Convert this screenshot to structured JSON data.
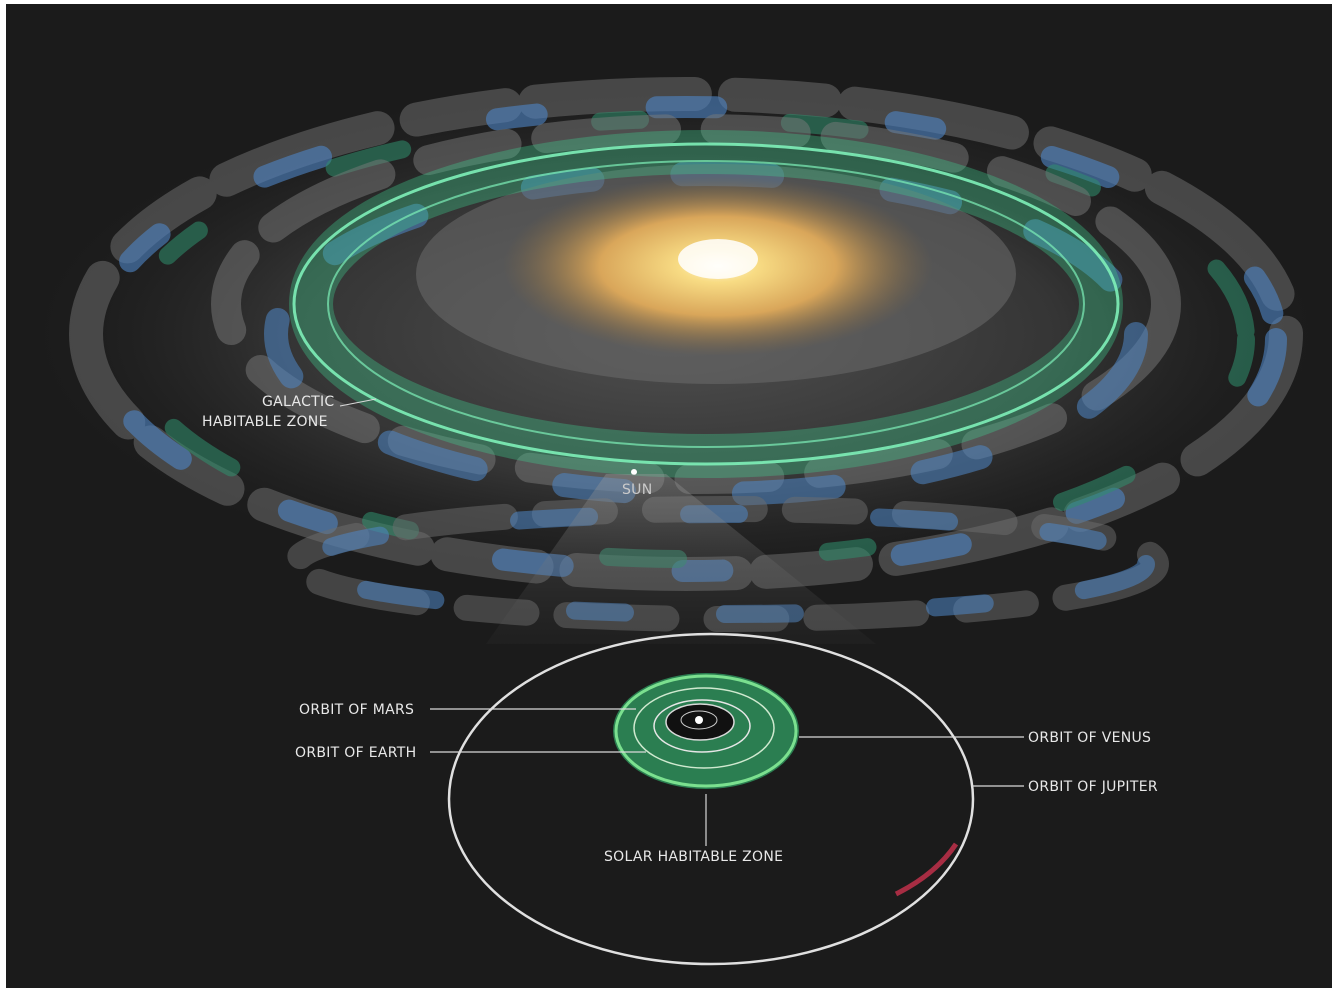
{
  "labels": {
    "galactic_zone_line1": "GALACTIC",
    "galactic_zone_line2": "HABITABLE ZONE",
    "sun": "SUN",
    "orbit_mars": "ORBIT OF MARS",
    "orbit_earth": "ORBIT OF EARTH",
    "orbit_venus": "ORBIT OF VENUS",
    "orbit_jupiter": "ORBIT OF JUPITER",
    "solar_zone": "SOLAR HABITABLE ZONE"
  },
  "colors": {
    "background": "#1b1b1b",
    "galactic_zone": "#3fcf8e",
    "solar_zone": "#3bb54a",
    "core": "#f3c56b",
    "spiral_arm_blue": "#4f86c6",
    "orbit_line": "#d9d9d9",
    "jupiter_marker": "#c0304a"
  }
}
